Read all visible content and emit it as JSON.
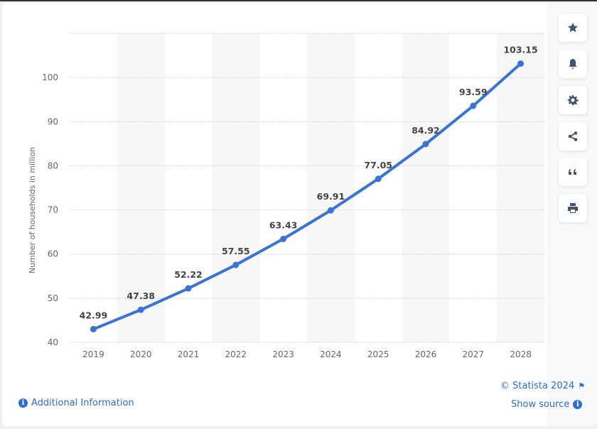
{
  "chart_data": {
    "type": "line",
    "title": "",
    "xlabel": "",
    "ylabel": "Number of households in million",
    "categories": [
      "2019",
      "2020",
      "2021",
      "2022",
      "2023",
      "2024",
      "2025",
      "2026",
      "2027",
      "2028"
    ],
    "values": [
      42.99,
      47.38,
      52.22,
      57.55,
      63.43,
      69.91,
      77.05,
      84.92,
      93.59,
      103.15
    ],
    "data_labels": [
      "42.99",
      "47.38",
      "52.22",
      "57.55",
      "63.43",
      "69.91",
      "77.05",
      "84.92",
      "93.59",
      "103.15"
    ],
    "ylim": [
      40,
      110
    ],
    "yticks": [
      "40",
      "50",
      "60",
      "70",
      "80",
      "90",
      "100"
    ],
    "grid": true,
    "line_color": "#3a73d6"
  },
  "toolbar": {
    "icons": [
      "star-icon",
      "bell-icon",
      "gear-icon",
      "share-icon",
      "quote-icon",
      "print-icon"
    ]
  },
  "footer": {
    "copyright": "© Statista 2024",
    "additional_info": "Additional Information",
    "show_source": "Show source"
  }
}
